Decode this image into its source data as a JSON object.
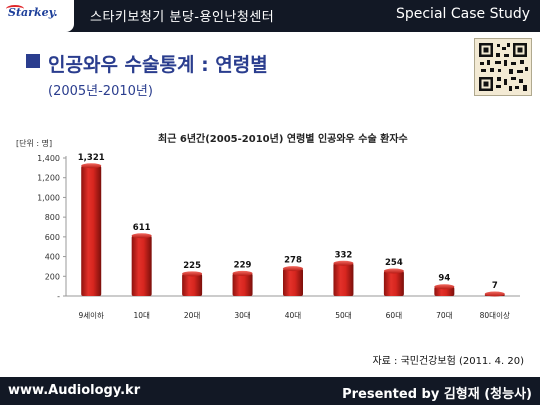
{
  "header": {
    "logo_text": "Starkey.",
    "center_text": "스타키보청기 분당-용인난청센터",
    "right_text": "Special Case Study"
  },
  "slide": {
    "title": "인공와우 수술통계 : 연령별",
    "subtitle": "(2005년-2010년)",
    "source": "자료 : 국민건강보험 (2011. 4. 20)"
  },
  "footer": {
    "left_text": "www.Audiology.kr",
    "right_text": "Presented by 김형재 (청능사)"
  },
  "colors": {
    "header_bg": "#121825",
    "title": "#2a3d8e",
    "bar": "#d7261f",
    "bar_dark": "#8e120e"
  },
  "chart_data": {
    "type": "bar",
    "title": "최근 6년간(2005-2010년) 연령별 인공와우 수술 환자수",
    "unit_label": "[단위 : 명]",
    "categories": [
      "9세이하",
      "10대",
      "20대",
      "30대",
      "40대",
      "50대",
      "60대",
      "70대",
      "80대이상"
    ],
    "values": [
      1321,
      611,
      225,
      229,
      278,
      332,
      254,
      94,
      7
    ],
    "yticks": [
      "1,400",
      "1,200",
      "1,000",
      "800",
      "600",
      "400",
      "200",
      "-"
    ],
    "ylim": [
      0,
      1400
    ],
    "data_labels": [
      "1,321",
      "611",
      "225",
      "229",
      "278",
      "332",
      "254",
      "94",
      "7"
    ],
    "grid": false
  }
}
